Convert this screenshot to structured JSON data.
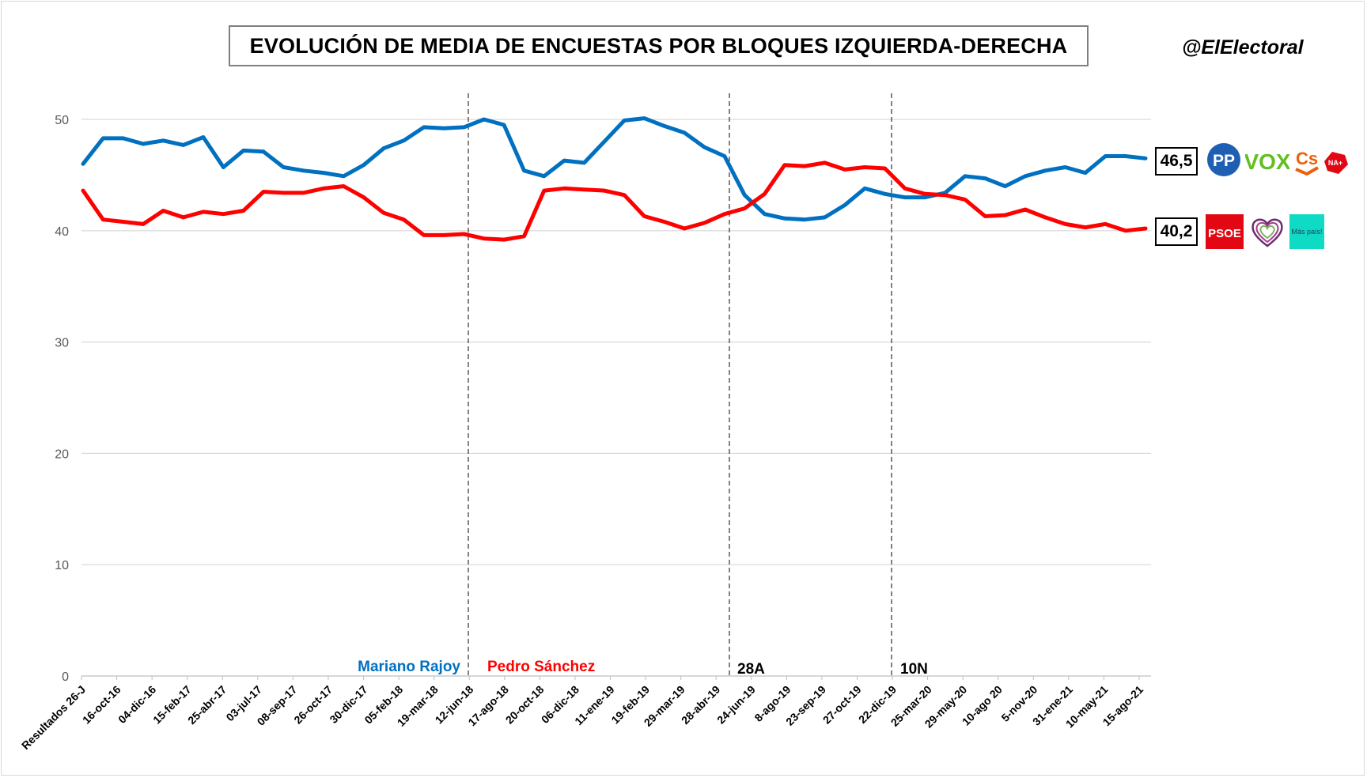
{
  "header": {
    "title": "EVOLUCIÓN DE MEDIA DE ENCUESTAS POR BLOQUES IZQUIERDA-DERECHA",
    "handle": "@ElElectoral"
  },
  "end_labels": {
    "right": "46,5",
    "left": "40,2"
  },
  "logos": {
    "right": [
      {
        "name": "pp-logo",
        "text": "PP",
        "color": "#1e5fb4"
      },
      {
        "name": "vox-logo",
        "text": "VOX",
        "color": "#63be21"
      },
      {
        "name": "cs-logo",
        "text": "Cs",
        "color": "#eb6109"
      },
      {
        "name": "na-logo",
        "text": "NA+",
        "color": "#e30613"
      }
    ],
    "left": [
      {
        "name": "psoe-logo",
        "text": "PSOE",
        "color": "#e30613"
      },
      {
        "name": "podemos-logo",
        "text": "",
        "color": "#6b2c6f"
      },
      {
        "name": "mas-pais-logo",
        "text": "Más país!",
        "color": "#0fdbc4"
      }
    ]
  },
  "chart_data": {
    "type": "line",
    "ylim": [
      0,
      50
    ],
    "yticks": [
      0,
      10,
      20,
      30,
      40,
      50
    ],
    "grid": true,
    "xlabels": [
      "Resultados 26-J",
      "16-oct-16",
      "04-dic-16",
      "15-feb-17",
      "25-abr-17",
      "03-jul-17",
      "08-sep-17",
      "26-oct-17",
      "30-dic-17",
      "05-feb-18",
      "19-mar-18",
      "12-jun-18",
      "17-ago-18",
      "20-oct-18",
      "06-dic-18",
      "11-ene-19",
      "19-feb-19",
      "29-mar-19",
      "28-abr-19",
      "24-jun-19",
      "8-ago-19",
      "23-sep-19",
      "27-oct-19",
      "22-dic-19",
      "25-mar-20",
      "29-may-20",
      "10-ago 20",
      "5-nov-20",
      "31-ene-21",
      "10-may-21",
      "15-ago-21"
    ],
    "series": [
      {
        "color": "#0070c0",
        "values": [
          46,
          48.3,
          48.3,
          47.8,
          48.1,
          47.7,
          48.4,
          45.7,
          47.2,
          47.1,
          45.7,
          45.4,
          45.2,
          44.9,
          45.9,
          47.4,
          48.1,
          49.3,
          49.2,
          49.3,
          50.0,
          49.5,
          45.4,
          44.9,
          46.3,
          46.1,
          48.0,
          49.9,
          50.1,
          49.4,
          48.8,
          47.5,
          46.7,
          43.2,
          41.5,
          41.1,
          41.0,
          41.2,
          42.3,
          43.8,
          43.3,
          43.0,
          43.0,
          43.4,
          44.9,
          44.7,
          44.0,
          44.9,
          45.4,
          45.7,
          45.2,
          46.7,
          46.7,
          46.5
        ],
        "end_label": "46,5"
      },
      {
        "color": "#ff0000",
        "values": [
          43.6,
          41.0,
          40.8,
          40.6,
          41.8,
          41.2,
          41.7,
          41.5,
          41.8,
          43.5,
          43.4,
          43.4,
          43.8,
          44.0,
          43.0,
          41.6,
          41.0,
          39.6,
          39.6,
          39.7,
          39.3,
          39.2,
          39.5,
          43.6,
          43.8,
          43.7,
          43.6,
          43.2,
          41.3,
          40.8,
          40.2,
          40.7,
          41.5,
          42.0,
          43.3,
          45.9,
          45.8,
          46.1,
          45.5,
          45.7,
          45.6,
          43.8,
          43.3,
          43.2,
          42.8,
          41.3,
          41.4,
          41.9,
          41.2,
          40.6,
          40.3,
          40.6,
          40.0,
          40.2
        ],
        "end_label": "40,2"
      }
    ],
    "markers": [
      {
        "label": "Mariano Rajoy",
        "color": "#0070c0"
      },
      {
        "label": "Pedro Sánchez",
        "color": "#ff0000"
      },
      {
        "label": "28A",
        "color": "#000000"
      },
      {
        "label": "10N",
        "color": "#000000"
      }
    ]
  }
}
